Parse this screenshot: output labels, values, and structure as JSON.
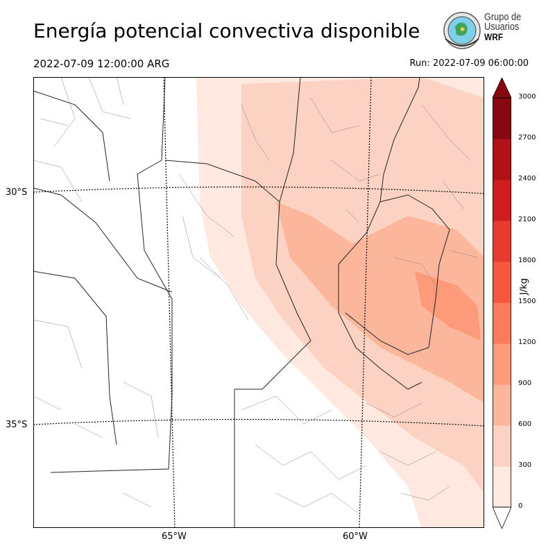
{
  "header": {
    "title": "Energía potencial convectiva disponible",
    "valid_time": "2022-07-09 12:00:00 ARG",
    "run_time": "Run: 2022-07-09 06:00:00"
  },
  "logo": {
    "line1": "Grupo de",
    "line2": "Usuarios",
    "line3": "WRF"
  },
  "axes": {
    "lat_labels": [
      "30°S",
      "35°S"
    ],
    "lon_labels": [
      "65°W",
      "60°W"
    ]
  },
  "colorbar": {
    "unit": "J/kg",
    "levels": [
      "0",
      "300",
      "600",
      "900",
      "1200",
      "1500",
      "1800",
      "2100",
      "2400",
      "2700",
      "3000"
    ],
    "colors": [
      "#fee8e0",
      "#fcd2c2",
      "#fcb69b",
      "#fc9a7a",
      "#fb7c5c",
      "#f6573f",
      "#e83a2e",
      "#d01e1f",
      "#b11117",
      "#880811"
    ]
  }
}
